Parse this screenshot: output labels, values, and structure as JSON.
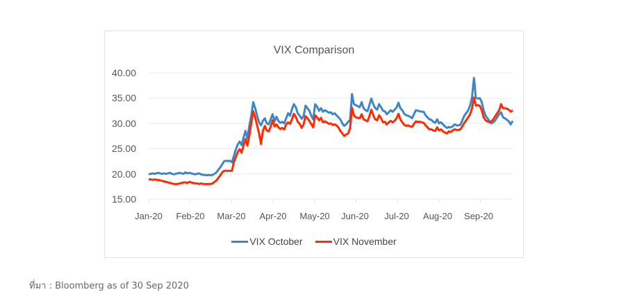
{
  "chart_data": {
    "type": "line",
    "title": "VIX Comparison",
    "xlabel": "",
    "ylabel": "",
    "ylim": [
      15,
      40
    ],
    "yticks": [
      "40.00",
      "35.00",
      "30.00",
      "25.00",
      "20.00",
      "15.00"
    ],
    "categories": [
      "Jan-20",
      "Feb-20",
      "Mar-20",
      "Apr-20",
      "May-20",
      "Jun-20",
      "Jul-20",
      "Aug-20",
      "Sep-20"
    ],
    "grid": true,
    "legend_position": "bottom",
    "series": [
      {
        "name": "VIX October",
        "color": "#3d85c6",
        "values": [
          19.9,
          20.0,
          20.1,
          20.0,
          20.1,
          20.2,
          20.1,
          20.0,
          20.1,
          20.0,
          20.1,
          20.2,
          20.0,
          19.9,
          20.0,
          20.1,
          20.2,
          20.1,
          20.0,
          20.3,
          20.1,
          20.2,
          20.1,
          20.0,
          19.9,
          20.0,
          20.1,
          19.9,
          19.8,
          19.8,
          19.7,
          19.8,
          19.7,
          19.8,
          20.0,
          20.3,
          20.8,
          21.3,
          21.9,
          22.5,
          22.6,
          22.5,
          22.6,
          22.3,
          23.5,
          24.8,
          25.8,
          26.4,
          25.7,
          27.2,
          28.5,
          27.0,
          29.5,
          31.5,
          34.2,
          33.0,
          31.5,
          30.2,
          29.6,
          30.5,
          31.0,
          30.0,
          29.8,
          30.8,
          31.8,
          30.4,
          31.3,
          30.5,
          30.1,
          30.3,
          30.0,
          31.0,
          32.0,
          31.5,
          32.8,
          33.8,
          33.2,
          32.0,
          31.5,
          30.9,
          31.4,
          33.5,
          33.0,
          32.5,
          31.5,
          30.8,
          33.8,
          33.3,
          32.5,
          33.0,
          32.3,
          32.6,
          32.4,
          32.1,
          32.2,
          31.8,
          32.0,
          31.6,
          31.2,
          30.8,
          30.0,
          29.5,
          29.8,
          30.3,
          30.7,
          35.8,
          33.8,
          33.6,
          33.4,
          33.2,
          34.2,
          33.0,
          32.6,
          32.4,
          33.6,
          34.9,
          33.8,
          33.0,
          32.7,
          33.8,
          33.2,
          32.5,
          32.4,
          31.8,
          32.2,
          32.6,
          32.3,
          32.7,
          33.1,
          34.1,
          33.0,
          32.6,
          31.9,
          31.6,
          31.5,
          31.3,
          31.0,
          31.8,
          32.6,
          32.5,
          32.4,
          32.3,
          32.3,
          31.6,
          31.2,
          30.8,
          30.7,
          30.3,
          30.1,
          30.8,
          30.0,
          30.2,
          29.8,
          29.4,
          29.1,
          29.3,
          29.2,
          29.4,
          29.8,
          29.6,
          29.6,
          29.7,
          30.6,
          31.5,
          32.0,
          32.6,
          33.5,
          35.2,
          39.0,
          35.0,
          34.9,
          35.0,
          34.2,
          32.6,
          31.5,
          31.0,
          30.4,
          30.0,
          30.2,
          30.6,
          31.2,
          31.8,
          32.2,
          31.2,
          31.0,
          30.7,
          30.4,
          29.8,
          30.5
        ]
      },
      {
        "name": "VIX November",
        "color": "#ff2a00",
        "values": [
          18.9,
          18.9,
          18.8,
          18.9,
          18.8,
          18.8,
          18.7,
          18.6,
          18.5,
          18.4,
          18.3,
          18.2,
          18.1,
          18.0,
          18.0,
          18.0,
          18.1,
          18.2,
          18.3,
          18.3,
          18.2,
          18.4,
          18.3,
          18.2,
          18.1,
          18.1,
          18.0,
          18.1,
          18.0,
          18.0,
          18.0,
          18.0,
          18.0,
          18.1,
          18.4,
          18.7,
          19.2,
          19.7,
          20.3,
          20.6,
          20.6,
          20.6,
          20.6,
          20.6,
          22.3,
          23.3,
          24.3,
          24.9,
          24.2,
          25.6,
          26.9,
          25.6,
          27.6,
          30.0,
          32.4,
          31.2,
          29.6,
          28.0,
          25.9,
          28.5,
          29.5,
          28.6,
          28.4,
          29.3,
          30.6,
          29.4,
          29.8,
          29.2,
          28.9,
          29.1,
          28.8,
          29.8,
          30.2,
          29.9,
          30.8,
          31.9,
          31.3,
          30.3,
          29.9,
          29.1,
          29.8,
          31.4,
          31.0,
          30.5,
          29.8,
          29.2,
          31.6,
          31.2,
          30.6,
          31.1,
          30.2,
          30.4,
          30.2,
          29.9,
          30.0,
          29.7,
          29.8,
          29.6,
          29.2,
          28.5,
          28.0,
          27.5,
          27.8,
          28.0,
          29.0,
          33.1,
          31.6,
          31.2,
          31.1,
          31.0,
          31.8,
          30.8,
          30.6,
          30.4,
          31.4,
          32.7,
          31.6,
          30.8,
          30.6,
          31.6,
          31.0,
          30.2,
          30.3,
          29.8,
          30.2,
          30.5,
          30.2,
          30.5,
          31.0,
          31.9,
          30.8,
          30.2,
          29.7,
          29.5,
          29.6,
          29.4,
          29.3,
          29.9,
          30.4,
          30.3,
          30.3,
          30.2,
          30.1,
          29.6,
          29.2,
          28.8,
          28.8,
          28.6,
          28.5,
          29.2,
          28.6,
          28.8,
          28.4,
          28.2,
          28.0,
          28.4,
          28.3,
          28.6,
          28.8,
          28.7,
          28.7,
          28.8,
          29.4,
          30.1,
          30.6,
          31.2,
          31.8,
          33.0,
          35.1,
          33.5,
          33.6,
          33.5,
          32.6,
          31.2,
          30.6,
          30.4,
          30.2,
          30.4,
          30.8,
          31.4,
          32.0,
          32.6,
          33.8,
          33.0,
          33.0,
          32.9,
          32.7,
          32.3,
          32.6
        ]
      }
    ]
  },
  "legend": {
    "items": [
      {
        "label": "VIX October",
        "color": "#3d85c6"
      },
      {
        "label": "VIX November",
        "color": "#ff2a00"
      }
    ]
  },
  "source_note": "ที่มา : Bloomberg as of 30 Sep 2020"
}
